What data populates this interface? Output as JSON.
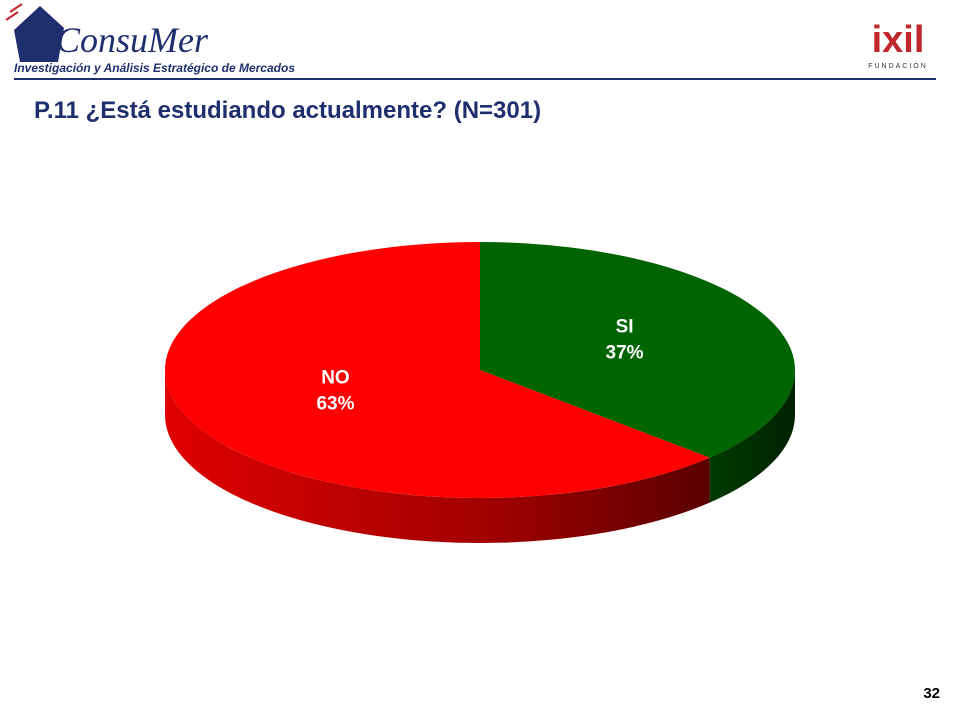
{
  "header": {
    "logo_text": "ConsuMer",
    "logo_subtitle": "Investigación y Análisis Estratégico de Mercados",
    "partner_logo": "ixil",
    "partner_subtitle": "FUNDACIÓN"
  },
  "page_number": "32",
  "chart_data": {
    "type": "pie",
    "title": "P.11 ¿Está estudiando actualmente? (N=301)",
    "categories": [
      "SI",
      "NO"
    ],
    "values": [
      37,
      63
    ],
    "value_labels": [
      "37%",
      "63%"
    ],
    "colors": [
      "#006400",
      "#ff0000"
    ]
  }
}
